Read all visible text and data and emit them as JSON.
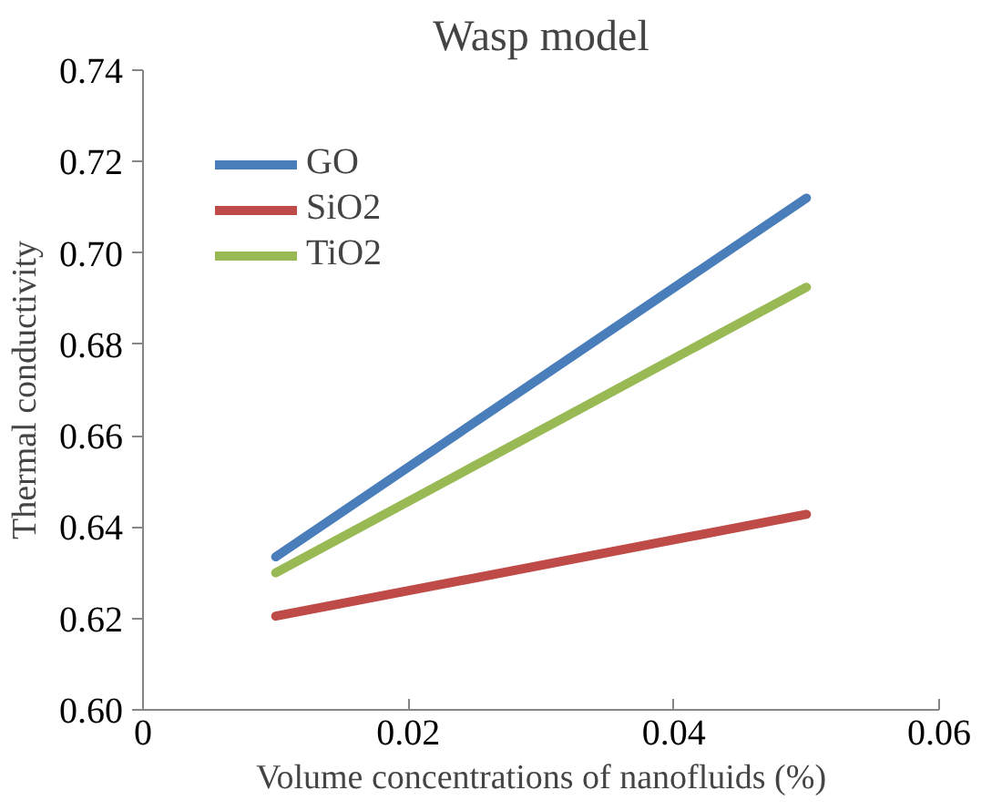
{
  "chart_data": {
    "type": "line",
    "title": "Wasp model",
    "xlabel": "Volume concentrations of nanofluids (%)",
    "ylabel": "Thermal conductivity",
    "x": [
      0.01,
      0.05
    ],
    "series": [
      {
        "name": "GO",
        "color": "#4a7ebb",
        "values": [
          0.6335,
          0.712
        ]
      },
      {
        "name": "SiO2",
        "color": "#be4b48",
        "values": [
          0.6205,
          0.6428
        ]
      },
      {
        "name": "TiO2",
        "color": "#98b954",
        "values": [
          0.63,
          0.6925
        ]
      }
    ],
    "xlim": [
      0,
      0.06
    ],
    "xticks": [
      0,
      0.02,
      0.04,
      0.06
    ],
    "ylim": [
      0.6,
      0.74
    ],
    "yticks": [
      {
        "value": 0.6,
        "label": "0.60"
      },
      {
        "value": 0.62,
        "label": "0.62"
      },
      {
        "value": 0.64,
        "label": "0.64"
      },
      {
        "value": 0.66,
        "label": "0.66"
      },
      {
        "value": 0.68,
        "label": "0.68"
      },
      {
        "value": 0.7,
        "label": "0.70"
      },
      {
        "value": 0.72,
        "label": "0.72"
      },
      {
        "value": 0.74,
        "label": "0.74"
      }
    ],
    "legend": "top left",
    "grid": false,
    "marker": "none",
    "line_style": "solid"
  }
}
